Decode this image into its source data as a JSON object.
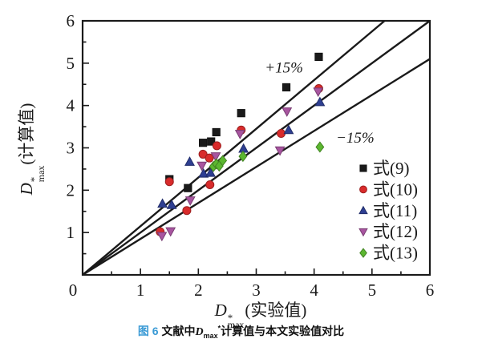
{
  "chart_data": {
    "type": "scatter",
    "xlabel": "D*max(实验值)",
    "ylabel": "D*max(计算值)",
    "xlim": [
      0,
      6
    ],
    "ylim": [
      0,
      6
    ],
    "x_tick_labels": [
      "0",
      "1",
      "2",
      "3",
      "4",
      "5",
      "6"
    ],
    "y_tick_labels": [
      "1",
      "2",
      "3",
      "4",
      "5",
      "6"
    ],
    "minor_tick_step": 0.5,
    "grid": false,
    "legend_position": "lower right",
    "axis_color": "#1a1a1a",
    "reference_lines": [
      {
        "name": "plus-15-percent-line",
        "slope": 1.15
      },
      {
        "name": "parity-line",
        "slope": 1.0
      },
      {
        "name": "minus-15-percent-line",
        "slope": 0.85
      }
    ],
    "annotations": [
      {
        "text": "+15%",
        "x": 3.48,
        "y": 4.89
      },
      {
        "text": "−15%",
        "x": 4.71,
        "y": 3.24
      }
    ],
    "series": [
      {
        "name": "式(9)",
        "marker": "square",
        "color": "#1a1a1a",
        "points": [
          [
            1.5,
            2.26
          ],
          [
            1.82,
            2.05
          ],
          [
            2.08,
            3.12
          ],
          [
            2.22,
            3.15
          ],
          [
            2.31,
            3.37
          ],
          [
            2.74,
            3.82
          ],
          [
            3.52,
            4.43
          ],
          [
            4.08,
            5.15
          ]
        ]
      },
      {
        "name": "式(10)",
        "marker": "circle",
        "color": "#d92b2b",
        "points": [
          [
            1.34,
            1.02
          ],
          [
            1.5,
            2.2
          ],
          [
            1.8,
            1.52
          ],
          [
            2.08,
            2.85
          ],
          [
            2.19,
            2.76
          ],
          [
            2.2,
            2.13
          ],
          [
            2.32,
            3.05
          ],
          [
            2.74,
            3.42
          ],
          [
            3.43,
            3.34
          ],
          [
            4.08,
            4.4
          ]
        ]
      },
      {
        "name": "式(11)",
        "marker": "triangle-up",
        "color": "#2e3f92",
        "points": [
          [
            1.38,
            1.68
          ],
          [
            1.54,
            1.65
          ],
          [
            1.85,
            2.67
          ],
          [
            2.09,
            2.39
          ],
          [
            2.21,
            2.41
          ],
          [
            2.78,
            2.98
          ],
          [
            3.56,
            3.42
          ],
          [
            4.1,
            4.08
          ]
        ]
      },
      {
        "name": "式(12)",
        "marker": "triangle-down",
        "color": "#a855a0",
        "points": [
          [
            1.37,
            0.92
          ],
          [
            1.52,
            1.03
          ],
          [
            1.86,
            1.76
          ],
          [
            2.06,
            2.58
          ],
          [
            2.3,
            2.8
          ],
          [
            2.72,
            3.33
          ],
          [
            3.41,
            2.94
          ],
          [
            3.53,
            3.86
          ],
          [
            4.07,
            4.33
          ]
        ]
      },
      {
        "name": "式(13)",
        "marker": "diamond",
        "color": "#5cb730",
        "points": [
          [
            2.26,
            2.56
          ],
          [
            2.31,
            2.62
          ],
          [
            2.36,
            2.57
          ],
          [
            2.42,
            2.7
          ],
          [
            2.77,
            2.8
          ],
          [
            4.1,
            3.02
          ]
        ]
      }
    ]
  },
  "x_axis": {
    "d": "D",
    "sup": "*",
    "sub": "max",
    "rest": "(实验值)"
  },
  "y_axis": {
    "d": "D",
    "sup": "*",
    "sub": "max",
    "rest": "(计算值)"
  },
  "caption": {
    "fig_label": "图 6",
    "fig_color": "#3a9ad5",
    "pre": "文献中",
    "d": "D",
    "sub": "max",
    "sup": "*",
    "post": "计算值与本文实验值对比"
  }
}
